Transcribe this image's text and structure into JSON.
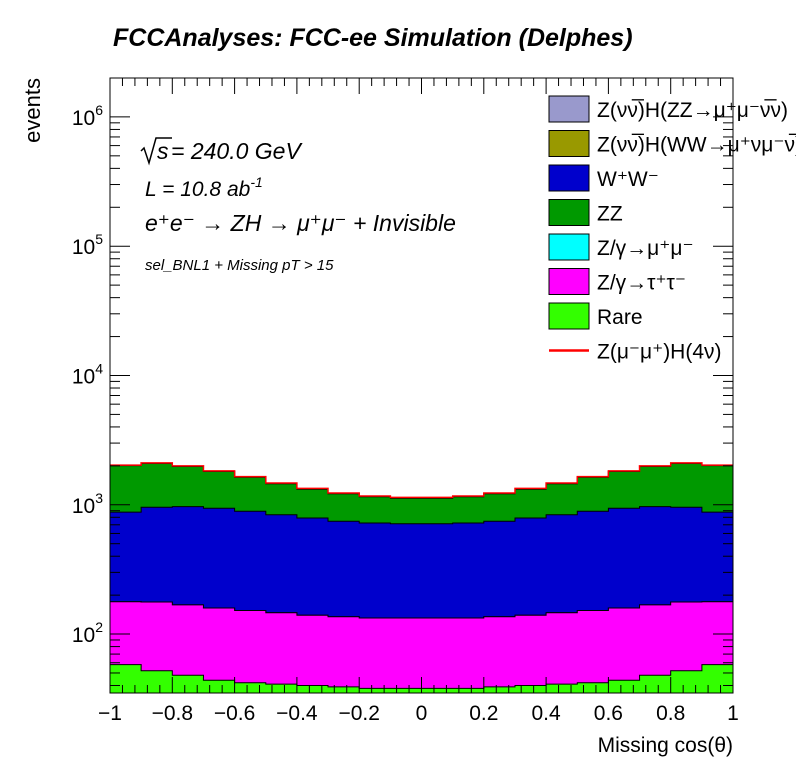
{
  "chart_data": {
    "type": "area",
    "title": "FCCAnalyses: FCC-ee Simulation (Delphes)",
    "xlabel": "Missing cos(θ)",
    "ylabel": "events",
    "xlim": [
      -1,
      1
    ],
    "ylim": [
      35,
      2000000
    ],
    "yscale": "log",
    "grid": false,
    "legend_position": "top-right",
    "x_ticks": [
      "−1",
      "−0.8",
      "−0.6",
      "−0.4",
      "−0.2",
      "0",
      "0.2",
      "0.4",
      "0.6",
      "0.8",
      "1"
    ],
    "y_ticks": [
      {
        "base": "10",
        "exp": "2",
        "value": 100
      },
      {
        "base": "10",
        "exp": "3",
        "value": 1000
      },
      {
        "base": "10",
        "exp": "4",
        "value": 10000
      },
      {
        "base": "10",
        "exp": "5",
        "value": 100000
      },
      {
        "base": "10",
        "exp": "6",
        "value": 1000000
      }
    ],
    "annotations": {
      "sqrt_s": "s",
      "energy": " = 240.0 GeV",
      "lumi_main": "L = 10.8 ab",
      "lumi_exp": "-1",
      "process": "e⁺e⁻ → ZH → μ⁺μ⁻ + Invisible",
      "selection": "sel_BNL1 + Missing pT > 15"
    },
    "x": [
      -0.95,
      -0.85,
      -0.75,
      -0.65,
      -0.55,
      -0.45,
      -0.35,
      -0.25,
      -0.15,
      -0.05,
      0.05,
      0.15,
      0.25,
      0.35,
      0.45,
      0.55,
      0.65,
      0.75,
      0.85,
      0.95
    ],
    "series": [
      {
        "name": "Z(νν̅)H(ZZ→μ⁺μ⁻ν̅ν)",
        "color": "#9999cc",
        "values": [
          2,
          2,
          2,
          2,
          2,
          2,
          2,
          2,
          2,
          2,
          2,
          2,
          2,
          2,
          2,
          2,
          2,
          2,
          2,
          2
        ]
      },
      {
        "name": "Z(νν̅)H(WW→μ⁺νμ⁻ν̅)",
        "color": "#999900",
        "values": [
          3,
          3,
          3,
          3,
          3,
          3,
          3,
          3,
          3,
          3,
          3,
          3,
          3,
          3,
          3,
          3,
          3,
          3,
          3,
          3
        ]
      },
      {
        "name": "W⁺W⁻",
        "color": "#0000cc",
        "values": [
          700,
          780,
          800,
          780,
          740,
          690,
          650,
          610,
          590,
          580,
          580,
          590,
          610,
          650,
          690,
          740,
          780,
          800,
          780,
          700
        ]
      },
      {
        "name": "ZZ",
        "color": "#009900",
        "values": [
          1130,
          1130,
          1010,
          870,
          740,
          620,
          530,
          470,
          430,
          410,
          410,
          430,
          470,
          530,
          620,
          740,
          870,
          1010,
          1130,
          1130
        ]
      },
      {
        "name": "Z/γ→μ⁺μ⁻",
        "color": "#00ffff",
        "values": [
          0,
          0,
          0,
          0,
          0,
          0,
          0,
          0,
          0,
          0,
          0,
          0,
          0,
          0,
          0,
          0,
          0,
          0,
          0,
          0
        ]
      },
      {
        "name": "Z/γ→τ⁺τ⁻",
        "color": "#ff00ff",
        "values": [
          120,
          125,
          120,
          115,
          110,
          105,
          100,
          97,
          95,
          95,
          95,
          95,
          97,
          100,
          105,
          110,
          115,
          120,
          125,
          120
        ]
      },
      {
        "name": "Rare",
        "color": "#33ff00",
        "values": [
          58,
          52,
          48,
          44,
          42,
          41,
          40,
          39,
          38,
          38,
          38,
          38,
          39,
          40,
          41,
          42,
          44,
          48,
          52,
          58
        ]
      },
      {
        "name": "Z(μ⁻μ⁺)H(4ν)",
        "color": "#ff0000",
        "style": "line",
        "values": [
          15,
          15,
          15,
          14,
          14,
          13,
          13,
          13,
          12,
          12,
          12,
          12,
          13,
          13,
          13,
          14,
          14,
          15,
          15,
          15
        ]
      }
    ]
  }
}
